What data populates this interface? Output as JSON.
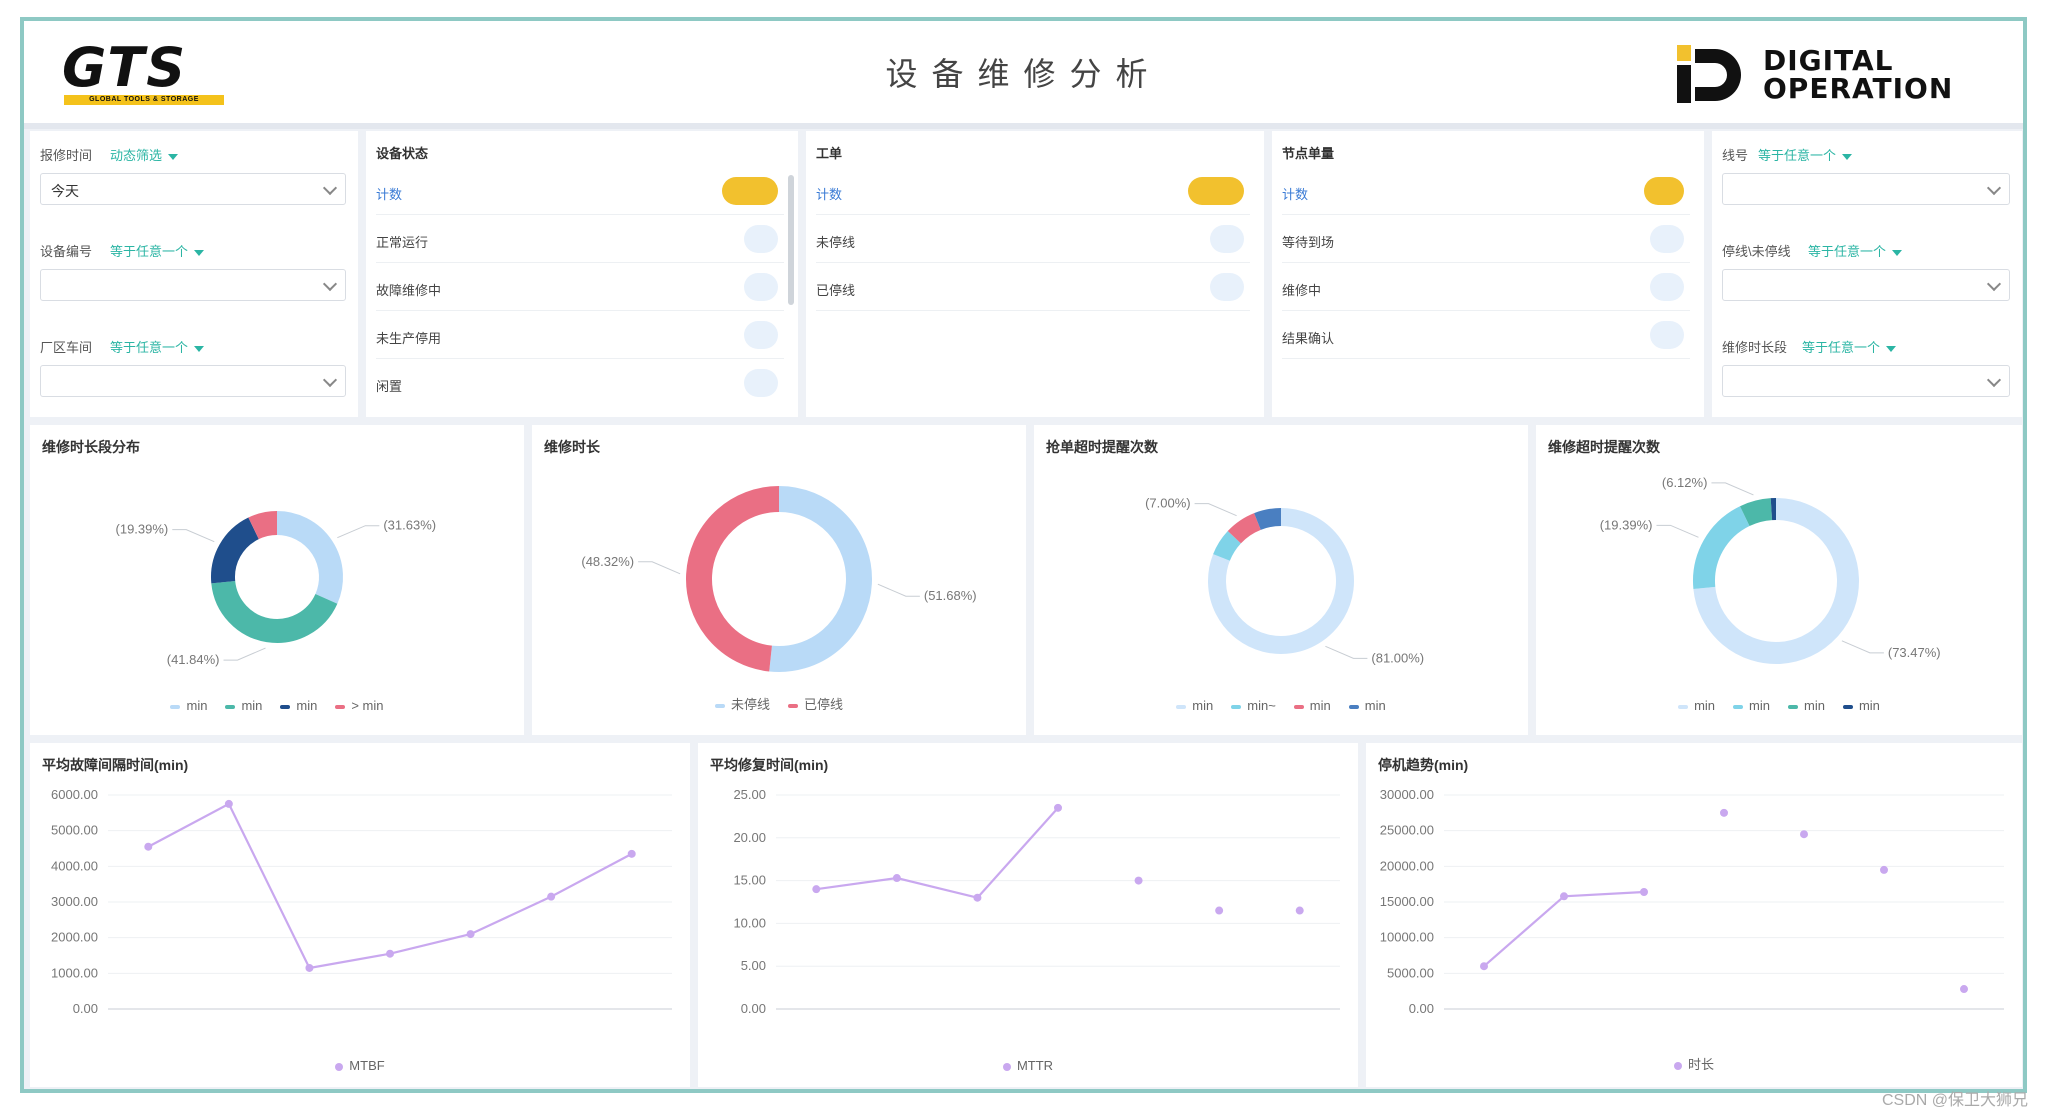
{
  "header": {
    "title": "设备维修分析",
    "logo_left_text": "GTS",
    "logo_left_sub": "GLOBAL TOOLS & STORAGE",
    "logo_right_line1": "DIGITAL",
    "logo_right_line2": "OPERATION"
  },
  "filters_left": [
    {
      "label": "报修时间",
      "mode": "动态筛选",
      "value": "今天"
    },
    {
      "label": "设备编号",
      "mode": "等于任意一个",
      "value": ""
    },
    {
      "label": "厂区车间",
      "mode": "等于任意一个",
      "value": ""
    }
  ],
  "filters_right": [
    {
      "label": "线号",
      "mode": "等于任意一个",
      "value": ""
    },
    {
      "label": "停线\\未停线",
      "mode": "等于任意一个",
      "value": ""
    },
    {
      "label": "维修时长段",
      "mode": "等于任意一个",
      "value": ""
    }
  ],
  "lists": [
    {
      "title": "设备状态",
      "items": [
        "计数",
        "正常运行",
        "故障维修中",
        "未生产停用",
        "闲置"
      ]
    },
    {
      "title": "工单",
      "items": [
        "计数",
        "未停线",
        "已停线"
      ]
    },
    {
      "title": "节点单量",
      "items": [
        "计数",
        "等待到场",
        "维修中",
        "结果确认"
      ]
    }
  ],
  "donut_charts": [
    {
      "title": "维修时长段分布",
      "colors": [
        "#b9daf7",
        "#4cb8a9",
        "#1f4e8c",
        "#ea6f84"
      ],
      "legend": [
        "min",
        "min",
        "min",
        "> min"
      ],
      "chart_data": {
        "type": "pie",
        "values": [
          31.63,
          41.84,
          19.39,
          7.14
        ],
        "labels": [
          "31.63%",
          "41.84%",
          "19.39%",
          ""
        ]
      }
    },
    {
      "title": "维修时长",
      "colors": [
        "#b9daf7",
        "#ea6f84"
      ],
      "legend": [
        "未停线",
        "已停线"
      ],
      "chart_data": {
        "type": "pie",
        "values": [
          51.68,
          48.32
        ],
        "labels": [
          "51.68%",
          "48.32%"
        ]
      }
    },
    {
      "title": "抢单超时提醒次数",
      "colors": [
        "#cfe5fa",
        "#7fd3e8",
        "#ea6f84",
        "#4a7fc1"
      ],
      "legend": [
        "min",
        "min~",
        "min",
        "min"
      ],
      "chart_data": {
        "type": "pie",
        "values": [
          81.0,
          6.0,
          7.0,
          6.0
        ],
        "labels": [
          "81.00%",
          "",
          "7.00%",
          ""
        ]
      }
    },
    {
      "title": "维修超时提醒次数",
      "colors": [
        "#cfe5fa",
        "#7fd3e8",
        "#4cb8a9",
        "#1f4e8c"
      ],
      "legend": [
        "min",
        "min",
        "min",
        "min"
      ],
      "chart_data": {
        "type": "pie",
        "values": [
          73.47,
          19.39,
          6.12,
          1.02
        ],
        "labels": [
          "73.47%",
          "19.39%",
          "6.12%",
          ""
        ]
      }
    }
  ],
  "line_charts": [
    {
      "title": "平均故障间隔时间(min)",
      "legend": "MTBF",
      "color": "#c9a8ef",
      "chart_data": {
        "type": "line",
        "y_ticks": [
          "6000.00",
          "5000.00",
          "4000.00",
          "3000.00",
          "2000.00",
          "1000.00",
          "0.00"
        ],
        "ylim": [
          0,
          6000
        ],
        "x": [
          1,
          2,
          3,
          4,
          5,
          6,
          7
        ],
        "values": [
          4550,
          5750,
          1150,
          1550,
          2100,
          3150,
          4350
        ]
      }
    },
    {
      "title": "平均修复时间(min)",
      "legend": "MTTR",
      "color": "#c9a8ef",
      "chart_data": {
        "type": "line",
        "y_ticks": [
          "25.00",
          "20.00",
          "15.00",
          "10.00",
          "5.00",
          "0.00"
        ],
        "ylim": [
          0,
          25
        ],
        "x": [
          1,
          2,
          3,
          4,
          5,
          6,
          7
        ],
        "values": [
          14.0,
          15.3,
          13.0,
          23.5,
          15.0,
          11.5,
          11.5
        ],
        "segments": [
          [
            0,
            1,
            2
          ],
          [
            2,
            3
          ]
        ]
      }
    },
    {
      "title": "停机趋势(min)",
      "legend": "时长",
      "color": "#c9a8ef",
      "chart_data": {
        "type": "line",
        "y_ticks": [
          "30000.00",
          "25000.00",
          "20000.00",
          "15000.00",
          "10000.00",
          "5000.00",
          "0.00"
        ],
        "ylim": [
          0,
          30000
        ],
        "x": [
          1,
          2,
          3,
          4,
          5,
          6,
          7
        ],
        "values": [
          6000,
          15800,
          16400,
          27500,
          24500,
          19500,
          2800
        ],
        "segments": [
          [
            0,
            1,
            2
          ]
        ]
      }
    }
  ],
  "watermark": "CSDN @保卫大狮兄"
}
